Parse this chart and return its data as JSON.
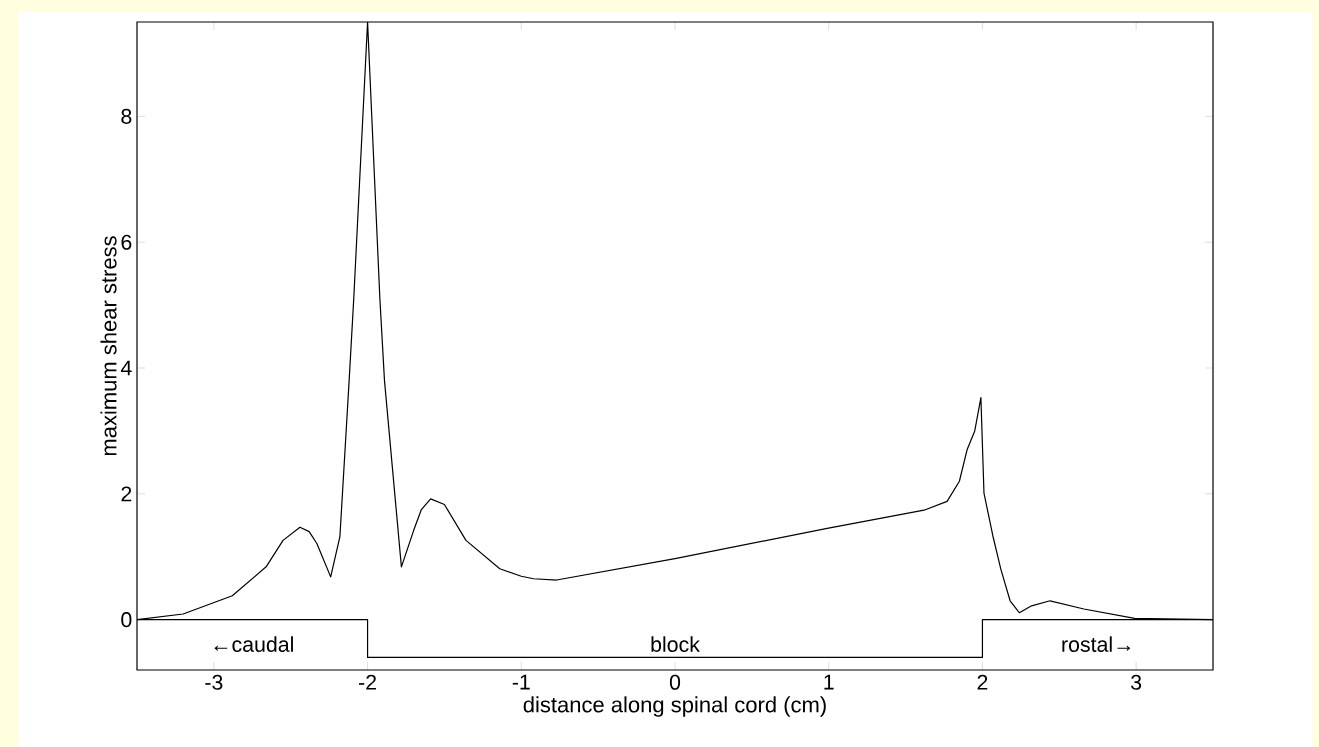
{
  "chart_data": {
    "type": "line",
    "xlabel": "distance along spinal cord (cm)",
    "ylabel": "maximum shear stress",
    "xlim": [
      -3.5,
      3.5
    ],
    "ylim": [
      -0.8,
      9.5
    ],
    "xticks": [
      -3,
      -2,
      -1,
      0,
      1,
      2,
      3
    ],
    "yticks": [
      0,
      2,
      4,
      6,
      8
    ],
    "grid": false,
    "series": [
      {
        "color": "#000000",
        "x": [
          -3.5,
          -3.2,
          -2.88,
          -2.66,
          -2.55,
          -2.44,
          -2.38,
          -2.33,
          -2.24,
          -2.18,
          -2.12,
          -2.09,
          -2.0,
          -1.92,
          -1.89,
          -1.78,
          -1.7,
          -1.65,
          -1.59,
          -1.5,
          -1.36,
          -1.14,
          -1.0,
          -0.92,
          -0.77,
          0,
          0.99,
          1.62,
          1.77,
          1.85,
          1.9,
          1.95,
          1.99,
          2.01,
          2.07,
          2.12,
          2.18,
          2.24,
          2.32,
          2.44,
          2.66,
          2.99,
          3.5
        ],
        "values": [
          0,
          0.09,
          0.38,
          0.84,
          1.26,
          1.47,
          1.4,
          1.21,
          0.68,
          1.32,
          3.8,
          5.1,
          9.5,
          5.1,
          3.8,
          0.84,
          1.42,
          1.75,
          1.92,
          1.83,
          1.26,
          0.81,
          0.69,
          0.65,
          0.63,
          0.97,
          1.45,
          1.74,
          1.88,
          2.2,
          2.7,
          3.0,
          3.53,
          2.01,
          1.31,
          0.8,
          0.3,
          0.11,
          0.22,
          0.3,
          0.17,
          0.02,
          0
        ]
      },
      {
        "color": "#000000",
        "x": [
          -3.5,
          -2,
          -2,
          2,
          2,
          3.5
        ],
        "values": [
          0,
          0,
          -0.6,
          -0.6,
          0,
          0
        ]
      }
    ],
    "annotations": [
      "←caudal",
      "block",
      "rostal→"
    ]
  }
}
